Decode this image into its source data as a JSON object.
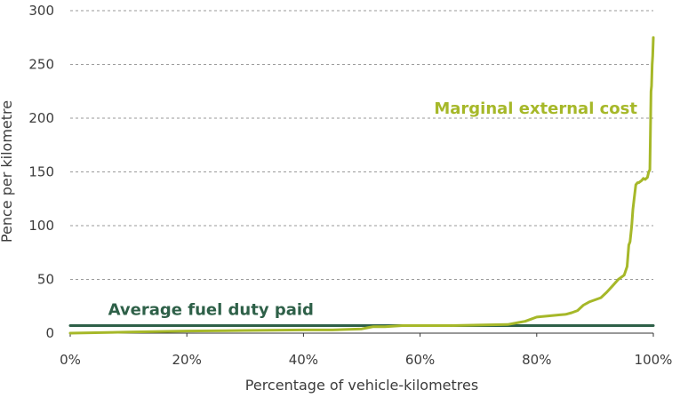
{
  "chart_data": {
    "type": "line",
    "title": "",
    "xlabel": "Percentage of vehicle-kilometres",
    "ylabel": "Pence per kilometre",
    "xlim": [
      0,
      100
    ],
    "ylim": [
      0,
      300
    ],
    "x_ticks": [
      0,
      20,
      40,
      60,
      80,
      100
    ],
    "x_tick_labels": [
      "0%",
      "20%",
      "40%",
      "60%",
      "80%",
      "100%"
    ],
    "y_ticks": [
      0,
      50,
      100,
      150,
      200,
      250,
      300
    ],
    "y_tick_labels": [
      "0",
      "50",
      "100",
      "150",
      "200",
      "250",
      "300"
    ],
    "grid": "horizontal dashed",
    "series": [
      {
        "name": "Marginal external cost",
        "color": "#a6b829",
        "x": [
          0,
          10,
          20,
          30,
          40,
          45,
          50,
          51,
          52,
          53,
          54,
          57,
          60,
          65,
          70,
          75,
          76,
          77,
          78,
          79,
          80,
          82,
          84,
          85,
          86,
          87,
          88,
          89,
          90,
          91,
          92,
          93,
          94,
          95,
          95.5,
          95.8,
          96,
          96.3,
          96.5,
          96.7,
          97,
          97.3,
          97.5,
          98,
          98.3,
          98.6,
          99,
          99.2,
          99.4,
          99.5,
          99.6,
          99.7,
          99.8,
          99.9,
          100
        ],
        "y": [
          0,
          1,
          2,
          2.5,
          3,
          3,
          4,
          5,
          6,
          6,
          6,
          7,
          7,
          7,
          7.5,
          8,
          9,
          10,
          11,
          13,
          15,
          16,
          17,
          17.5,
          19,
          21,
          26,
          29,
          31,
          33,
          38,
          44,
          50,
          54,
          62,
          82,
          85,
          100,
          115,
          125,
          138,
          140,
          140,
          142,
          144,
          143,
          145,
          150,
          152,
          185,
          225,
          230,
          250,
          258,
          275
        ]
      },
      {
        "name": "Average fuel duty paid",
        "color": "#2e6048",
        "x": [
          0,
          100
        ],
        "y": [
          7,
          7
        ]
      }
    ],
    "annotations": [
      {
        "series": 0,
        "text": "Marginal external cost",
        "color": "#a6b829",
        "anchor": "end",
        "x": 100,
        "y": 209
      },
      {
        "series": 1,
        "text": "Average fuel duty paid",
        "color": "#2e6048",
        "anchor": "start",
        "x": 6.5,
        "y": 22
      }
    ]
  }
}
